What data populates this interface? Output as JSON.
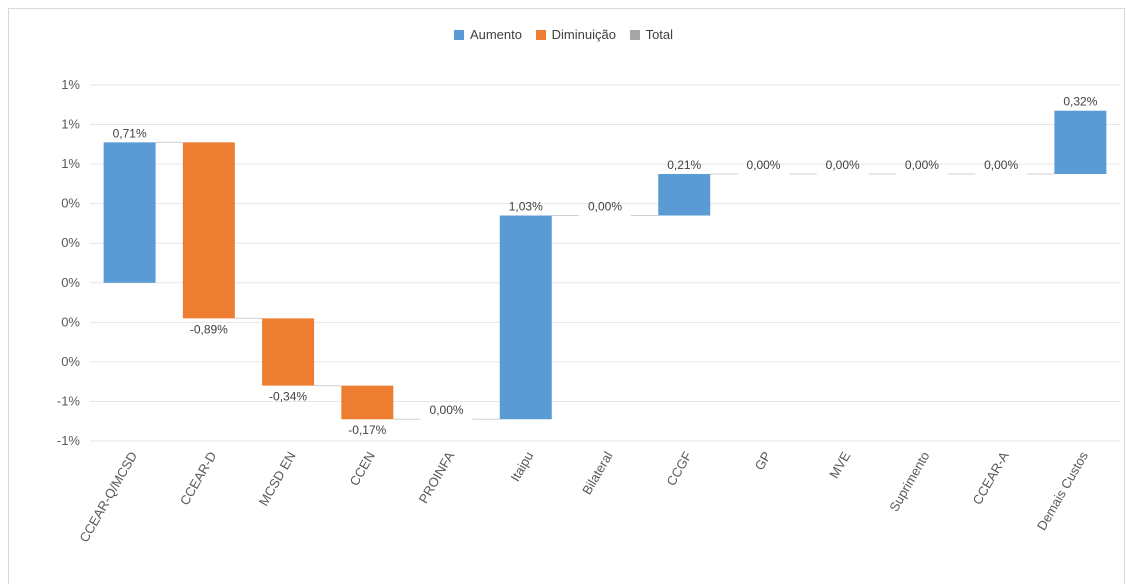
{
  "chart_data": {
    "type": "waterfall",
    "legend": [
      {
        "label": "Aumento",
        "color": "#5b9bd5"
      },
      {
        "label": "Diminuição",
        "color": "#ed7d31"
      },
      {
        "label": "Total",
        "color": "#a5a5a5"
      }
    ],
    "categories": [
      "CCEAR-Q/MCSD",
      "CCEAR-D",
      "MCSD EN",
      "CCEN",
      "PROINFA",
      "Itaipu",
      "Bilateral",
      "CCGF",
      "GP",
      "MVE",
      "Suprimento",
      "CCEAR-A",
      "Demais Custos"
    ],
    "values": [
      0.71,
      -0.89,
      -0.34,
      -0.17,
      0.0,
      1.03,
      0.0,
      0.21,
      0.0,
      0.0,
      0.0,
      0.0,
      0.32
    ],
    "data_labels": [
      "0,71%",
      "-0,89%",
      "-0,34%",
      "-0,17%",
      "0,00%",
      "1,03%",
      "0,00%",
      "0,21%",
      "0,00%",
      "0,00%",
      "0,00%",
      "0,00%",
      "0,32%"
    ],
    "y_tick_labels": [
      "1%",
      "1%",
      "1%",
      "0%",
      "0%",
      "0%",
      "0%",
      "0%",
      "-1%",
      "-1%"
    ],
    "ylim": [
      -0.8,
      1.0
    ],
    "grid": true,
    "legend_position": "top-center",
    "colors": {
      "increase": "#5b9bd5",
      "decrease": "#ed7d31",
      "total": "#a5a5a5"
    }
  }
}
